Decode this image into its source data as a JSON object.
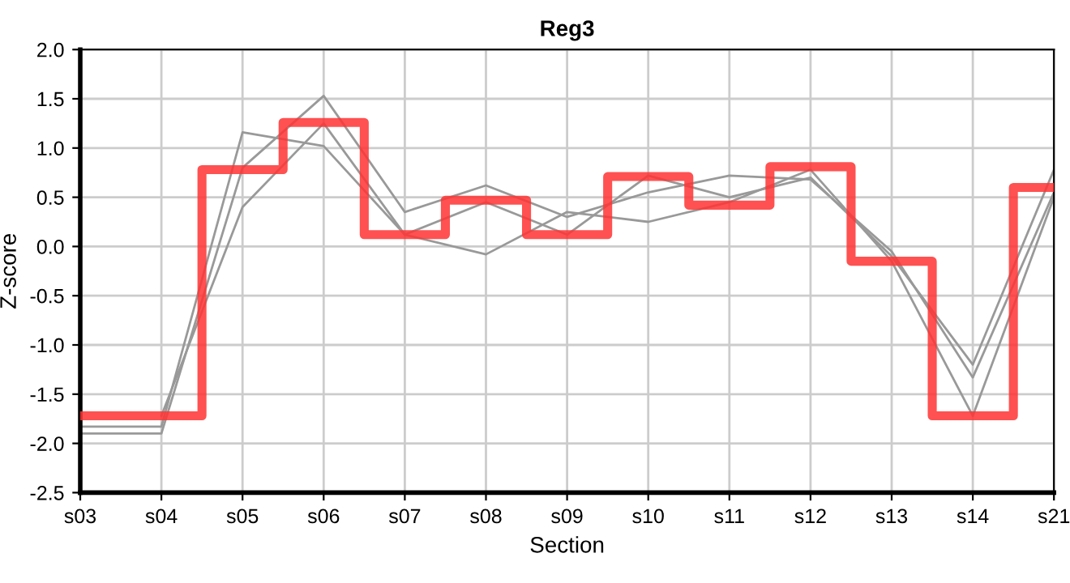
{
  "chart_data": {
    "type": "line",
    "title": "Reg3",
    "xlabel": "Section",
    "ylabel": "Z-score",
    "categories": [
      "s03",
      "s04",
      "s05",
      "s06",
      "s07",
      "s08",
      "s09",
      "s10",
      "s11",
      "s12",
      "s13",
      "s14",
      "s21"
    ],
    "series": [
      {
        "color": "#999999",
        "values": [
          -1.83,
          -1.83,
          1.16,
          1.02,
          0.12,
          0.45,
          0.12,
          0.72,
          0.5,
          0.7,
          -0.1,
          -1.2,
          0.78
        ]
      },
      {
        "color": "#999999",
        "values": [
          -1.9,
          -1.9,
          0.8,
          1.53,
          0.35,
          0.62,
          0.3,
          0.55,
          0.72,
          0.68,
          -0.05,
          -1.33,
          0.55
        ]
      },
      {
        "color": "#999999",
        "values": [
          null,
          -1.72,
          0.4,
          1.25,
          0.12,
          -0.08,
          0.35,
          0.25,
          0.45,
          0.78,
          -0.15,
          -1.72,
          0.5
        ]
      },
      {
        "type": "step",
        "color": "#ff3333",
        "values": [
          -1.72,
          -1.72,
          0.78,
          1.26,
          0.12,
          0.47,
          0.12,
          0.71,
          0.42,
          0.81,
          -0.15,
          -1.72,
          0.6
        ]
      }
    ],
    "ylim": [
      -2.5,
      2.0
    ],
    "yticks": [
      -2.5,
      {
        "value": -2,
        "label": "-2.0"
      },
      -1.5,
      {
        "value": -1,
        "label": "-1.0"
      },
      -0.5,
      {
        "value": 0,
        "label": "0.0"
      },
      0.5,
      {
        "value": 1,
        "label": "1.0"
      },
      1.5,
      {
        "value": 2,
        "label": "2.0"
      }
    ],
    "grid": true,
    "line_style": "solid"
  }
}
